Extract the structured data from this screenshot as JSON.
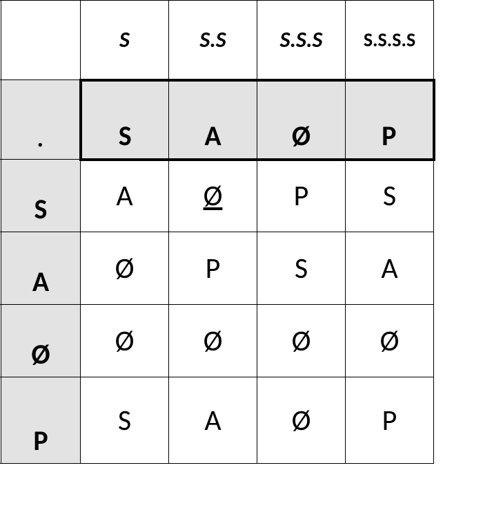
{
  "topHeaders": [
    "S",
    "S.S",
    "S.S.S",
    "S.S.S.S"
  ],
  "bandHeaders": [
    "S",
    "A",
    "Ø",
    "P"
  ],
  "rowLabels": [
    ".",
    "S",
    "A",
    "Ø",
    "P"
  ],
  "body": [
    [
      "A",
      "Ø",
      "P",
      "S"
    ],
    [
      "Ø",
      "P",
      "S",
      "A"
    ],
    [
      "Ø",
      "Ø",
      "Ø",
      "Ø"
    ],
    [
      "S",
      "A",
      "Ø",
      "P"
    ]
  ],
  "underline": {
    "row": 0,
    "col": 1
  },
  "colors": {
    "shade": "#e3e3e3",
    "border": "#000000",
    "bg": "#ffffff"
  },
  "font": {
    "family": "Calibri",
    "header_pt": 32,
    "cell_pt": 42
  }
}
